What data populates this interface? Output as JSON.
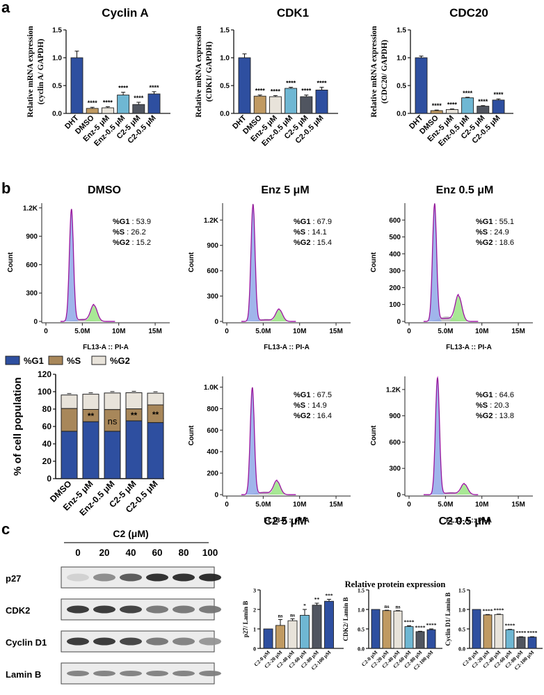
{
  "panels": {
    "a": "a",
    "b": "b",
    "c": "c"
  },
  "chart_data": [
    {
      "id": "cyclinA",
      "type": "bar",
      "title": "Cyclin A",
      "ylabel_lines": [
        "Relative mRNA expression",
        "(cyclin A/ GAPDH)"
      ],
      "categories": [
        "DHT",
        "DMSO",
        "Enz-5 μM",
        "Enz-0.5 μM",
        "C2-5 μM",
        "C2-0.5 μM"
      ],
      "values": [
        1.0,
        0.09,
        0.1,
        0.33,
        0.16,
        0.35
      ],
      "errors": [
        0.12,
        0.02,
        0.02,
        0.05,
        0.04,
        0.04
      ],
      "significance": [
        "",
        "****",
        "****",
        "****",
        "****",
        "****"
      ],
      "colors": [
        "#2e4fa0",
        "#c09a62",
        "#e8e3da",
        "#6fb7d3",
        "#505560",
        "#2e4fa0"
      ],
      "ylim": [
        0,
        1.5
      ],
      "yticks": [
        "0.0",
        "0.5",
        "1.0",
        "1.5"
      ]
    },
    {
      "id": "cdk1",
      "type": "bar",
      "title": "CDK1",
      "ylabel_lines": [
        "Relative mRNA expression",
        "(CDK1/ GAPDH)"
      ],
      "categories": [
        "DHT",
        "DMSO",
        "Enz-5 μM",
        "Enz-0.5 μM",
        "C2-5 μM",
        "C2-0.5 μM"
      ],
      "values": [
        1.0,
        0.31,
        0.3,
        0.45,
        0.3,
        0.42
      ],
      "errors": [
        0.07,
        0.02,
        0.02,
        0.02,
        0.03,
        0.05
      ],
      "significance": [
        "",
        "****",
        "****",
        "****",
        "****",
        "****"
      ],
      "colors": [
        "#2e4fa0",
        "#c09a62",
        "#e8e3da",
        "#6fb7d3",
        "#505560",
        "#2e4fa0"
      ],
      "ylim": [
        0,
        1.5
      ],
      "yticks": [
        "0.0",
        "0.5",
        "1.0",
        "1.5"
      ]
    },
    {
      "id": "cdc20",
      "type": "bar",
      "title": "CDC20",
      "ylabel_lines": [
        "Relative mRNA expression",
        "(CDC20/ GAPDH)"
      ],
      "categories": [
        "DHT",
        "DMSO",
        "Enz-5 μM",
        "Enz-0.5 μM",
        "C2-5 μM",
        "C2-0.5 μM"
      ],
      "values": [
        1.0,
        0.05,
        0.07,
        0.28,
        0.13,
        0.24
      ],
      "errors": [
        0.03,
        0.01,
        0.01,
        0.01,
        0.01,
        0.02
      ],
      "significance": [
        "",
        "****",
        "****",
        "****",
        "****",
        "****"
      ],
      "colors": [
        "#2e4fa0",
        "#c09a62",
        "#e8e3da",
        "#6fb7d3",
        "#505560",
        "#2e4fa0"
      ],
      "ylim": [
        0,
        1.5
      ],
      "yticks": [
        "0.0",
        "0.5",
        "1.0",
        "1.5"
      ]
    },
    {
      "id": "cellcycle",
      "type": "stacked-bar",
      "ylabel": "% of cell population",
      "categories": [
        "DMSO",
        "Enz-5 μM",
        "Enz-0.5 μM",
        "C2-5 μM",
        "C2-0.5 μM"
      ],
      "legend": [
        "%G1",
        "%S",
        "%G2"
      ],
      "series": [
        {
          "name": "%G1",
          "values": [
            54.5,
            65.5,
            54.5,
            66.5,
            64.5
          ],
          "color": "#2e4fa0"
        },
        {
          "name": "%S",
          "values": [
            26.2,
            14.1,
            25.0,
            13.8,
            20.3
          ],
          "color": "#a8875a"
        },
        {
          "name": "%G2",
          "values": [
            15.5,
            17.5,
            19.0,
            18.5,
            13.5
          ],
          "color": "#e8e3da"
        }
      ],
      "significance": [
        "",
        "**",
        "ns",
        "**",
        "**"
      ],
      "ylim": [
        0,
        120
      ],
      "yticks": [
        "0",
        "20",
        "40",
        "60",
        "80",
        "100",
        "120"
      ]
    },
    {
      "id": "p27",
      "type": "bar",
      "ylabel": "p27/ Lamin B",
      "categories": [
        "C2-0 μM",
        "C2-20 μM",
        "C2-40 μM",
        "C2-60 μM",
        "C2-80 μM",
        "C2-100 μM"
      ],
      "values": [
        1.0,
        1.18,
        1.42,
        1.7,
        2.22,
        2.42
      ],
      "errors": [
        0,
        0.3,
        0.1,
        0.3,
        0.1,
        0.1
      ],
      "significance": [
        "",
        "ns",
        "ns",
        "*",
        "**",
        "***"
      ],
      "colors": [
        "#2e4fa0",
        "#c09a62",
        "#e8e3da",
        "#6fb7d3",
        "#505560",
        "#2e4fa0"
      ],
      "ylim": [
        0,
        3
      ],
      "yticks": [
        "0",
        "1",
        "2",
        "3"
      ]
    },
    {
      "id": "cdk2",
      "type": "bar",
      "ylabel": "CDK2/ Lamin B",
      "categories": [
        "C2-0 μM",
        "C2-20 μM",
        "C2-40 μM",
        "C2-60 μM",
        "C2-80 μM",
        "C2-100 μM"
      ],
      "values": [
        1.0,
        0.97,
        0.96,
        0.56,
        0.43,
        0.48
      ],
      "errors": [
        0,
        0.01,
        0.01,
        0.02,
        0.01,
        0.02
      ],
      "significance": [
        "",
        "ns",
        "ns",
        "****",
        "****",
        "****"
      ],
      "colors": [
        "#2e4fa0",
        "#c09a62",
        "#e8e3da",
        "#6fb7d3",
        "#505560",
        "#2e4fa0"
      ],
      "ylim": [
        0,
        1.5
      ],
      "yticks": [
        "0.0",
        "0.5",
        "1.0",
        "1.5"
      ]
    },
    {
      "id": "cyclinD1",
      "type": "bar",
      "ylabel": "Cyclin D1/ Lamin B",
      "categories": [
        "C2-0 μM",
        "C2-20 μM",
        "C2-40 μM",
        "C2-60 μM",
        "C2-80 μM",
        "C2-100 μM"
      ],
      "values": [
        1.0,
        0.86,
        0.87,
        0.48,
        0.29,
        0.29
      ],
      "errors": [
        0,
        0.01,
        0.01,
        0.01,
        0.01,
        0.01
      ],
      "significance": [
        "",
        "****",
        "****",
        "****",
        "****",
        "****"
      ],
      "colors": [
        "#2e4fa0",
        "#c09a62",
        "#e8e3da",
        "#6fb7d3",
        "#505560",
        "#2e4fa0"
      ],
      "ylim": [
        0,
        1.5
      ],
      "yticks": [
        "0.0",
        "0.5",
        "1.0",
        "1.5"
      ]
    }
  ],
  "histograms": [
    {
      "id": "dmso",
      "title": "DMSO",
      "g1": "53.9",
      "s": "26.2",
      "g2": "15.2",
      "yticks": [
        "0",
        "300",
        "600",
        "900",
        "1.2K"
      ],
      "ymax": 1250,
      "peak1": 1180,
      "peak2": 170,
      "p1x": 3.5,
      "p2x": 6.6
    },
    {
      "id": "enz5",
      "title": "Enz 5 μM",
      "g1": "67.9",
      "s": "14.1",
      "g2": "15.4",
      "yticks": [
        "0",
        "300",
        "600",
        "900",
        "1.2K"
      ],
      "ymax": 1400,
      "peak1": 1380,
      "peak2": 140,
      "p1x": 3.6,
      "p2x": 7.2
    },
    {
      "id": "enz05",
      "title": "Enz 0.5 μM",
      "g1": "55.1",
      "s": "24.9",
      "g2": "18.6",
      "yticks": [
        "0",
        "100",
        "200",
        "300",
        "400",
        "500",
        "600"
      ],
      "ymax": 700,
      "peak1": 690,
      "peak2": 150,
      "p1x": 3.5,
      "p2x": 6.8
    },
    {
      "id": "c25",
      "title": "C2 5 μM",
      "g1": "67.5",
      "s": "14.9",
      "g2": "16.4",
      "yticks": [
        "0",
        "200",
        "400",
        "600",
        "800",
        "1.0K"
      ],
      "ymax": 1100,
      "peak1": 990,
      "peak2": 125,
      "p1x": 3.5,
      "p2x": 6.9
    },
    {
      "id": "c205",
      "title": "C2 0.5 μM",
      "g1": "64.6",
      "s": "20.3",
      "g2": "13.8",
      "yticks": [
        "0",
        "300",
        "600",
        "900",
        "1.2K"
      ],
      "ymax": 1350,
      "peak1": 1330,
      "peak2": 120,
      "p1x": 3.9,
      "p2x": 7.6
    }
  ],
  "hist_common": {
    "xlabel": "FL13-A :: PI-A",
    "ylabel": "Count",
    "xticks": [
      "0",
      "5.0M",
      "10M",
      "15M"
    ],
    "g1_label": "%G1",
    "s_label": "%S",
    "g2_label": "%G2"
  },
  "blot": {
    "header": "C2 (μM)",
    "doses": [
      "0",
      "20",
      "40",
      "60",
      "80",
      "100"
    ],
    "rows": [
      {
        "label": "p27",
        "intensity": [
          0.12,
          0.45,
          0.7,
          0.9,
          0.9,
          0.92
        ]
      },
      {
        "label": "CDK2",
        "intensity": [
          0.85,
          0.85,
          0.82,
          0.55,
          0.55,
          0.55
        ]
      },
      {
        "label": "Cyclin D1",
        "intensity": [
          0.85,
          0.85,
          0.8,
          0.55,
          0.5,
          0.4
        ]
      },
      {
        "label": "Lamin B",
        "intensity": [
          0.5,
          0.5,
          0.5,
          0.5,
          0.5,
          0.5
        ]
      }
    ],
    "quant_title": "Relative protein expression"
  }
}
